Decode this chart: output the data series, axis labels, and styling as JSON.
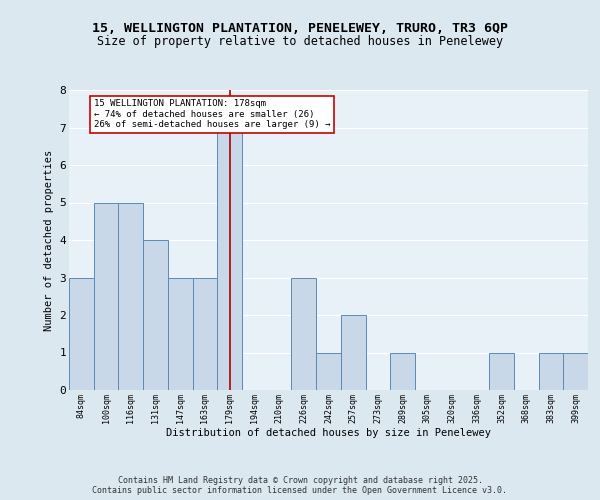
{
  "title_line1": "15, WELLINGTON PLANTATION, PENELEWEY, TRURO, TR3 6QP",
  "title_line2": "Size of property relative to detached houses in Penelewey",
  "xlabel": "Distribution of detached houses by size in Penelewey",
  "ylabel": "Number of detached properties",
  "categories": [
    "84sqm",
    "100sqm",
    "116sqm",
    "131sqm",
    "147sqm",
    "163sqm",
    "179sqm",
    "194sqm",
    "210sqm",
    "226sqm",
    "242sqm",
    "257sqm",
    "273sqm",
    "289sqm",
    "305sqm",
    "320sqm",
    "336sqm",
    "352sqm",
    "368sqm",
    "383sqm",
    "399sqm"
  ],
  "values": [
    3,
    5,
    5,
    4,
    3,
    3,
    7,
    0,
    0,
    3,
    1,
    2,
    0,
    1,
    0,
    0,
    0,
    1,
    0,
    1,
    1
  ],
  "bar_color": "#c8d8e8",
  "bar_edge_color": "#5a8ab5",
  "ref_line_x": "179sqm",
  "ref_line_color": "#aa0000",
  "annotation_text": "15 WELLINGTON PLANTATION: 178sqm\n← 74% of detached houses are smaller (26)\n26% of semi-detached houses are larger (9) →",
  "annotation_box_color": "#ffffff",
  "annotation_box_edge_color": "#cc0000",
  "ylim": [
    0,
    8
  ],
  "yticks": [
    0,
    1,
    2,
    3,
    4,
    5,
    6,
    7,
    8
  ],
  "footer_text": "Contains HM Land Registry data © Crown copyright and database right 2025.\nContains public sector information licensed under the Open Government Licence v3.0.",
  "bg_color": "#dce8f0",
  "plot_bg_color": "#e8f0f8",
  "grid_color": "#ffffff"
}
